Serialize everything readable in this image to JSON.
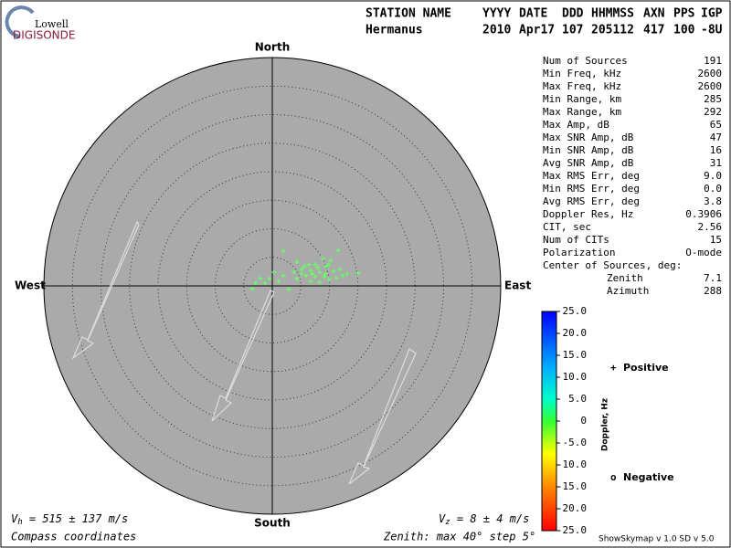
{
  "logo": {
    "top": "Lowell",
    "bottom": "DIGISONDE"
  },
  "header": {
    "columns": [
      "STATION NAME",
      "YYYY",
      "DATE",
      "DDD",
      "HHMMSS",
      "AXN",
      "PPS",
      "IGP"
    ],
    "values": [
      "Hermanus",
      "2010",
      "Apr17",
      "107",
      "205112",
      "417",
      "100",
      "-8U"
    ]
  },
  "stats": [
    {
      "label": "Num of Sources",
      "value": "191"
    },
    {
      "label": "Min Freq, kHz",
      "value": "2600"
    },
    {
      "label": "Max Freq, kHz",
      "value": "2600"
    },
    {
      "label": "Min Range, km",
      "value": "285"
    },
    {
      "label": "Max Range, km",
      "value": "292"
    },
    {
      "label": "Max Amp, dB",
      "value": "65"
    },
    {
      "label": "Max SNR Amp, dB",
      "value": "47"
    },
    {
      "label": "Min SNR Amp, dB",
      "value": "16"
    },
    {
      "label": "Avg SNR Amp, dB",
      "value": "31"
    },
    {
      "label": "Max RMS Err, deg",
      "value": "9.0"
    },
    {
      "label": "Min RMS Err, deg",
      "value": "0.0"
    },
    {
      "label": "Avg RMS Err, deg",
      "value": "3.8"
    },
    {
      "label": "Doppler Res, Hz",
      "value": "0.3906"
    },
    {
      "label": "CIT, sec",
      "value": "2.56"
    },
    {
      "label": "Num of CITs",
      "value": "15"
    },
    {
      "label": "Polarization",
      "value": "O-mode"
    }
  ],
  "center": {
    "title": "Center of Sources, deg:",
    "zenith_label": "Zenith",
    "zenith": "7.1",
    "azimuth_label": "Azimuth",
    "azimuth": "288"
  },
  "velocity": {
    "vh": {
      "symbol": "V",
      "sub": "h",
      "text": " = 515 ± 137 m/s"
    },
    "vz": {
      "symbol": "V",
      "sub": "z",
      "text": " = 8 ± 4 m/s"
    }
  },
  "footer": {
    "left": "Compass coordinates",
    "middle": "Zenith: max 40°  step 5°",
    "right": "ShowSkymap v 1.0   SD v 5.0"
  },
  "chart_data": {
    "type": "scatter",
    "directions": {
      "north": "North",
      "south": "South",
      "east": "East",
      "west": "West"
    },
    "rlim": [
      0,
      40
    ],
    "rticks": [
      5,
      10,
      15,
      20,
      25,
      30,
      35
    ],
    "color": "#66ff66",
    "x": [
      1.9,
      11.5,
      8.8,
      4.3,
      7.5,
      9.9,
      5.1,
      6.7,
      8.3,
      9.3,
      10.7,
      11.8,
      5.9,
      7.5,
      9.1,
      5.1,
      3.8,
      13.1,
      15.0,
      0.3,
      -0.5,
      -2.1,
      -2.9,
      -3.5,
      -1.3,
      1.1,
      2.9,
      4.3,
      6.7,
      8.3,
      9.9,
      11.2,
      1.9,
      8.0,
      6.4,
      10.2,
      9.4,
      5.6,
      7.0,
      12.3
    ],
    "values": [
      6.1,
      6.2,
      4.8,
      4.2,
      3.7,
      3.7,
      2.9,
      2.7,
      2.4,
      2.1,
      2.6,
      2.9,
      1.8,
      1.6,
      1.6,
      2.1,
      2.4,
      2.1,
      2.2,
      2.4,
      1.3,
      1.3,
      0.5,
      -0.5,
      0.5,
      0.8,
      -0.6,
      1.3,
      0.8,
      0.6,
      1.1,
      1.4,
      1.8,
      3.2,
      3.7,
      4.5,
      3.4,
      3.4,
      2.1,
      1.8
    ],
    "colorbar": {
      "label": "Doppler, Hz",
      "clim": [
        -25,
        25
      ],
      "ticks": [
        {
          "value": 25,
          "label": "25.0"
        },
        {
          "value": 20,
          "label": "20.0"
        },
        {
          "value": 15,
          "label": "15.0"
        },
        {
          "value": 10,
          "label": "10.0"
        },
        {
          "value": 5,
          "label": "5.0"
        },
        0,
        {
          "value": -5,
          "label": "-5.0"
        },
        {
          "value": -10,
          "label": "-10.0"
        },
        {
          "value": -15,
          "label": "-15.0"
        },
        {
          "value": -20,
          "label": "-20.0"
        },
        {
          "value": -25,
          "label": "-25.0"
        }
      ]
    },
    "legend": [
      {
        "symbol": "+",
        "name": "Positive",
        "color": "#0000cc"
      },
      {
        "symbol": "o",
        "name": "Negative",
        "color": "#dd0000"
      }
    ]
  }
}
